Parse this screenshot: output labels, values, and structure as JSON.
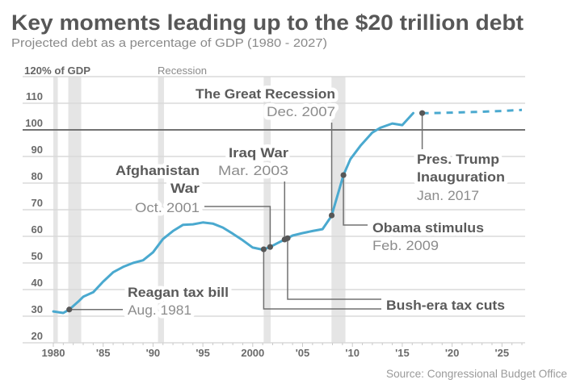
{
  "header": {
    "title": "Key moments leading up to the $20 trillion debt",
    "subtitle": "Projected debt as a percentage of GDP (1980 - 2027)"
  },
  "source": "Source: Congressional Budget Office",
  "chart_data": {
    "type": "line",
    "title": "Key moments leading up to the $20 trillion debt",
    "subtitle": "Projected debt as a percentage of GDP (1980 - 2027)",
    "xlabel": "",
    "ylabel": "% of GDP",
    "xlim": [
      1980,
      2027
    ],
    "ylim": [
      20,
      120
    ],
    "grid": true,
    "reference_line": 100,
    "y_top_label": "120% of GDP",
    "y_ticks": [
      20,
      30,
      40,
      50,
      60,
      70,
      80,
      90,
      100,
      110
    ],
    "y_tick_labels": [
      "20",
      "30",
      "40",
      "50",
      "60",
      "70",
      "80",
      "90",
      "100",
      "110"
    ],
    "x_ticks": [
      1980,
      1985,
      1990,
      1995,
      2000,
      2005,
      2010,
      2015,
      2020,
      2025
    ],
    "x_tick_labels": [
      "1980",
      "'85",
      "'90",
      "'95",
      "2000",
      "'05",
      "'10",
      "'15",
      "'20",
      "'25"
    ],
    "series": [
      {
        "name": "Debt (actual)",
        "style": "solid",
        "color": "#4aa9cf",
        "x": [
          1980,
          1981,
          1981.6,
          1982.5,
          1983,
          1984,
          1985,
          1986,
          1987,
          1988,
          1989,
          1990,
          1991,
          1992,
          1993,
          1994,
          1995,
          1996,
          1997,
          1998,
          1999,
          2000,
          2001,
          2001.75,
          2002.5,
          2003.2,
          2003.5,
          2004,
          2005,
          2006,
          2007,
          2007.9,
          2009.1,
          2009.8,
          2010.8,
          2012,
          2012.8,
          2014,
          2015,
          2016.1
        ],
        "y": [
          31.8,
          31.2,
          32.5,
          35.5,
          37.3,
          39,
          43,
          46.5,
          48.5,
          50,
          51,
          54,
          59,
          62,
          64.3,
          64.5,
          65.2,
          64.8,
          63.3,
          61,
          58.5,
          55.8,
          55,
          56,
          57.5,
          58.8,
          59.3,
          60.3,
          61.2,
          62,
          62.7,
          67.6,
          83,
          89,
          94,
          99,
          100.8,
          102.4,
          101.8,
          106.3
        ]
      },
      {
        "name": "Debt (projected)",
        "style": "dashed",
        "color": "#4aa9cf",
        "x": [
          2017,
          2018,
          2019,
          2020,
          2021,
          2022,
          2023,
          2024,
          2025,
          2026,
          2027
        ],
        "y": [
          106.3,
          106.3,
          106.4,
          106.5,
          106.6,
          106.7,
          106.8,
          107.0,
          107.1,
          107.3,
          107.5
        ]
      }
    ],
    "recessions": {
      "label": "Recession",
      "periods": [
        [
          1980.0,
          1980.45
        ],
        [
          1981.5,
          1982.8
        ],
        [
          1990.5,
          1991.1
        ],
        [
          2001.1,
          2001.8
        ],
        [
          2007.9,
          2009.3
        ]
      ]
    },
    "annotations": [
      {
        "id": "reagan",
        "title_lines": [
          "Reagan tax bill"
        ],
        "date": "Aug. 1981",
        "years": [
          1981.6
        ]
      },
      {
        "id": "bush",
        "title_lines": [
          "Bush-era tax cuts"
        ],
        "date": "",
        "years": [
          2001.1,
          2003.5
        ]
      },
      {
        "id": "afghanistan",
        "title_lines": [
          "Afghanistan",
          "War"
        ],
        "date": "Oct. 2001",
        "years": [
          2001.75
        ]
      },
      {
        "id": "iraq",
        "title_lines": [
          "Iraq War"
        ],
        "date": "Mar. 2003",
        "years": [
          2003.2
        ]
      },
      {
        "id": "great_recession",
        "title_lines": [
          "The Great Recession"
        ],
        "date": "Dec. 2007",
        "years": [
          2007.92
        ]
      },
      {
        "id": "obama",
        "title_lines": [
          "Obama stimulus"
        ],
        "date": "Feb. 2009",
        "years": [
          2009.1
        ]
      },
      {
        "id": "trump",
        "title_lines": [
          "Pres. Trump",
          "Inauguration"
        ],
        "date": "Jan. 2017",
        "years": [
          2017.0
        ]
      }
    ]
  }
}
